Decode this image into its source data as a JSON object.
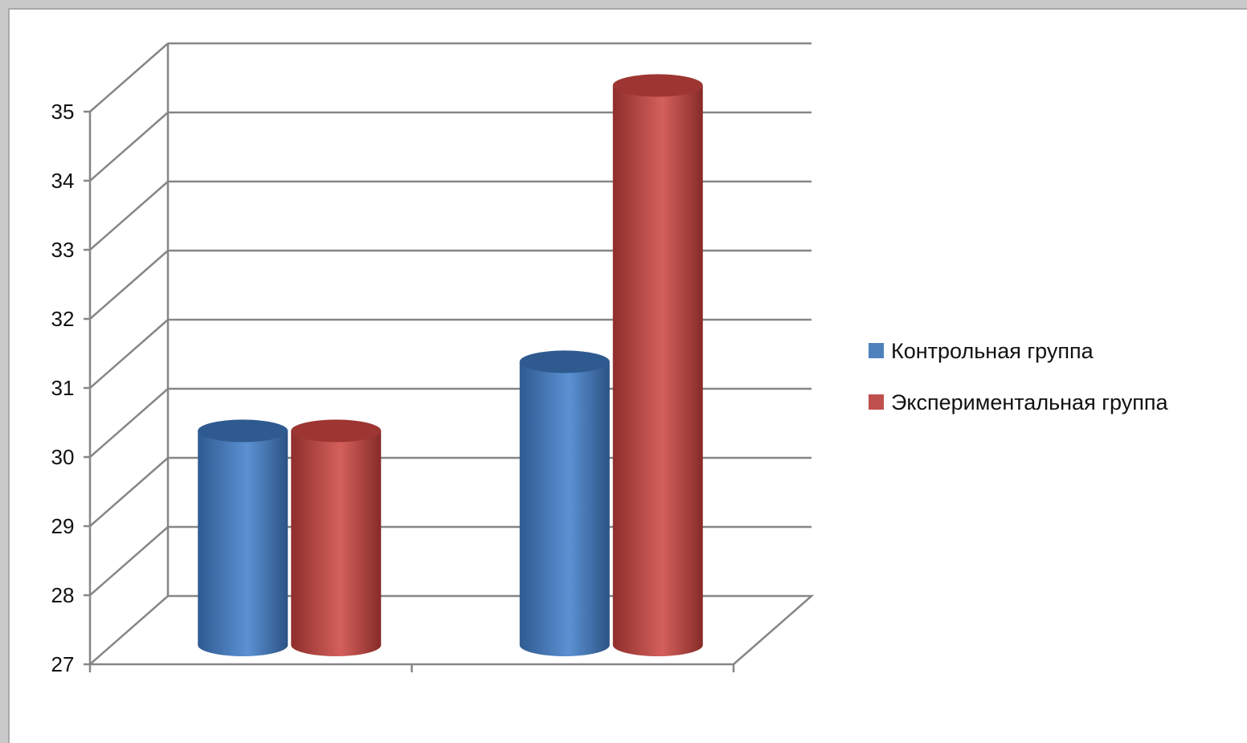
{
  "chart_data": {
    "type": "bar",
    "style": "3d-cylinder",
    "categories": [
      "",
      ""
    ],
    "series": [
      {
        "name": "Контрольная группа",
        "color": "#4f81bd",
        "values": [
          30.1,
          31.1
        ]
      },
      {
        "name": "Экспериментальная группа",
        "color": "#c0504d",
        "values": [
          30.1,
          35.1
        ]
      }
    ],
    "title": "",
    "xlabel": "",
    "ylabel": "",
    "ylim": [
      27,
      35
    ],
    "yticks": [
      27,
      28,
      29,
      30,
      31,
      32,
      33,
      34,
      35
    ],
    "grid": true,
    "legend_position": "right"
  }
}
